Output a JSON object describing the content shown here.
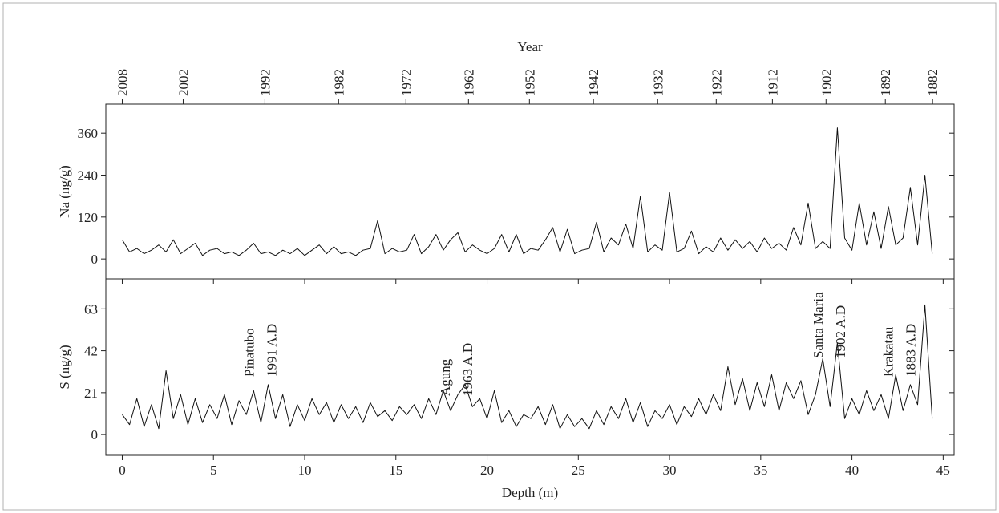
{
  "chart_data": [
    {
      "type": "line",
      "y_label": "Na (ng/g)",
      "x2_label": "Year",
      "x2ticks": [
        {
          "value": 0,
          "label": "2008"
        },
        {
          "value": 3.34,
          "label": "2002"
        },
        {
          "value": 7.82,
          "label": "1992"
        },
        {
          "value": 11.86,
          "label": "1982"
        },
        {
          "value": 15.55,
          "label": "1972"
        },
        {
          "value": 18.98,
          "label": "1962"
        },
        {
          "value": 22.32,
          "label": "1952"
        },
        {
          "value": 25.83,
          "label": "1942"
        },
        {
          "value": 29.35,
          "label": "1932"
        },
        {
          "value": 32.56,
          "label": "1922"
        },
        {
          "value": 35.64,
          "label": "1912"
        },
        {
          "value": 38.58,
          "label": "1902"
        },
        {
          "value": 41.83,
          "label": "1892"
        },
        {
          "value": 44.42,
          "label": "1882"
        }
      ],
      "xlim": [
        -0.9,
        45.6
      ],
      "ylim": [
        -57,
        443
      ],
      "yticks": [
        0,
        120,
        240,
        360
      ],
      "x": [
        0,
        0.4,
        0.8,
        1.2,
        1.6,
        2,
        2.4,
        2.8,
        3.2,
        3.6,
        4,
        4.4,
        4.8,
        5.2,
        5.6,
        6,
        6.4,
        6.8,
        7.2,
        7.6,
        8,
        8.4,
        8.8,
        9.2,
        9.6,
        10,
        10.4,
        10.8,
        11.2,
        11.6,
        12,
        12.4,
        12.8,
        13.2,
        13.6,
        14,
        14.4,
        14.8,
        15.2,
        15.6,
        16,
        16.4,
        16.8,
        17.2,
        17.6,
        18,
        18.4,
        18.8,
        19.2,
        19.6,
        20,
        20.4,
        20.8,
        21.2,
        21.6,
        22,
        22.4,
        22.8,
        23.2,
        23.6,
        24,
        24.4,
        24.8,
        25.2,
        25.6,
        26,
        26.4,
        26.8,
        27.2,
        27.6,
        28,
        28.4,
        28.8,
        29.2,
        29.6,
        30,
        30.4,
        30.8,
        31.2,
        31.6,
        32,
        32.4,
        32.8,
        33.2,
        33.6,
        34,
        34.4,
        34.8,
        35.2,
        35.6,
        36,
        36.4,
        36.8,
        37.2,
        37.6,
        38,
        38.4,
        38.8,
        39.2,
        39.6,
        40,
        40.4,
        40.8,
        41.2,
        41.6,
        42,
        42.4,
        42.8,
        43.2,
        43.6,
        44,
        44.4
      ],
      "series": [
        {
          "color": "#111111",
          "values": [
            55,
            20,
            30,
            15,
            25,
            40,
            20,
            55,
            15,
            30,
            45,
            10,
            25,
            30,
            15,
            20,
            10,
            25,
            45,
            15,
            20,
            10,
            25,
            15,
            30,
            10,
            25,
            40,
            15,
            35,
            15,
            20,
            10,
            25,
            30,
            110,
            15,
            30,
            20,
            25,
            70,
            15,
            35,
            70,
            25,
            55,
            75,
            20,
            40,
            25,
            15,
            30,
            70,
            20,
            70,
            15,
            30,
            25,
            55,
            90,
            20,
            85,
            15,
            25,
            30,
            105,
            20,
            60,
            40,
            100,
            30,
            180,
            20,
            40,
            25,
            190,
            20,
            30,
            80,
            15,
            35,
            20,
            60,
            25,
            55,
            30,
            50,
            20,
            60,
            30,
            45,
            25,
            90,
            40,
            160,
            30,
            50,
            30,
            375,
            60,
            25,
            160,
            40,
            135,
            30,
            150,
            40,
            60,
            205,
            40,
            240,
            15
          ]
        }
      ]
    },
    {
      "type": "line",
      "y_label": "S (ng/g)",
      "x_label": "Depth (m)",
      "xlim": [
        -0.9,
        45.6
      ],
      "xticks": [
        0,
        5,
        10,
        15,
        20,
        25,
        30,
        35,
        40,
        45
      ],
      "ylim": [
        -10.4,
        78
      ],
      "yticks": [
        0,
        21,
        42,
        63
      ],
      "annotations": [
        {
          "text": [
            "Pinatubo",
            "1991 A.D"
          ]
        },
        {
          "text": [
            "Agung",
            "1963 A.D"
          ]
        },
        {
          "text": [
            "Santa Maria",
            "1902 A.D"
          ]
        },
        {
          "text": [
            "Krakatau",
            "1883 A.D"
          ]
        }
      ],
      "x": [
        0,
        0.4,
        0.8,
        1.2,
        1.6,
        2,
        2.4,
        2.8,
        3.2,
        3.6,
        4,
        4.4,
        4.8,
        5.2,
        5.6,
        6,
        6.4,
        6.8,
        7.2,
        7.6,
        8,
        8.4,
        8.8,
        9.2,
        9.6,
        10,
        10.4,
        10.8,
        11.2,
        11.6,
        12,
        12.4,
        12.8,
        13.2,
        13.6,
        14,
        14.4,
        14.8,
        15.2,
        15.6,
        16,
        16.4,
        16.8,
        17.2,
        17.6,
        18,
        18.4,
        18.8,
        19.2,
        19.6,
        20,
        20.4,
        20.8,
        21.2,
        21.6,
        22,
        22.4,
        22.8,
        23.2,
        23.6,
        24,
        24.4,
        24.8,
        25.2,
        25.6,
        26,
        26.4,
        26.8,
        27.2,
        27.6,
        28,
        28.4,
        28.8,
        29.2,
        29.6,
        30,
        30.4,
        30.8,
        31.2,
        31.6,
        32,
        32.4,
        32.8,
        33.2,
        33.6,
        34,
        34.4,
        34.8,
        35.2,
        35.6,
        36,
        36.4,
        36.8,
        37.2,
        37.6,
        38,
        38.4,
        38.8,
        39.2,
        39.6,
        40,
        40.4,
        40.8,
        41.2,
        41.6,
        42,
        42.4,
        42.8,
        43.2,
        43.6,
        44,
        44.4
      ],
      "series": [
        {
          "color": "#111111",
          "values": [
            10,
            5,
            18,
            4,
            15,
            3,
            32,
            8,
            20,
            5,
            18,
            6,
            15,
            8,
            20,
            5,
            17,
            10,
            22,
            6,
            25,
            8,
            20,
            4,
            15,
            7,
            18,
            10,
            16,
            6,
            15,
            8,
            14,
            6,
            16,
            9,
            12,
            7,
            14,
            10,
            15,
            8,
            18,
            10,
            22,
            12,
            20,
            25,
            14,
            18,
            8,
            22,
            6,
            12,
            4,
            10,
            8,
            14,
            5,
            15,
            3,
            10,
            4,
            8,
            3,
            12,
            5,
            14,
            8,
            18,
            6,
            16,
            4,
            12,
            8,
            15,
            5,
            14,
            9,
            18,
            10,
            20,
            12,
            34,
            15,
            28,
            12,
            26,
            14,
            30,
            12,
            26,
            18,
            27,
            10,
            20,
            38,
            14,
            46,
            8,
            18,
            10,
            22,
            12,
            20,
            8,
            30,
            12,
            25,
            15,
            65,
            8
          ]
        }
      ]
    }
  ]
}
